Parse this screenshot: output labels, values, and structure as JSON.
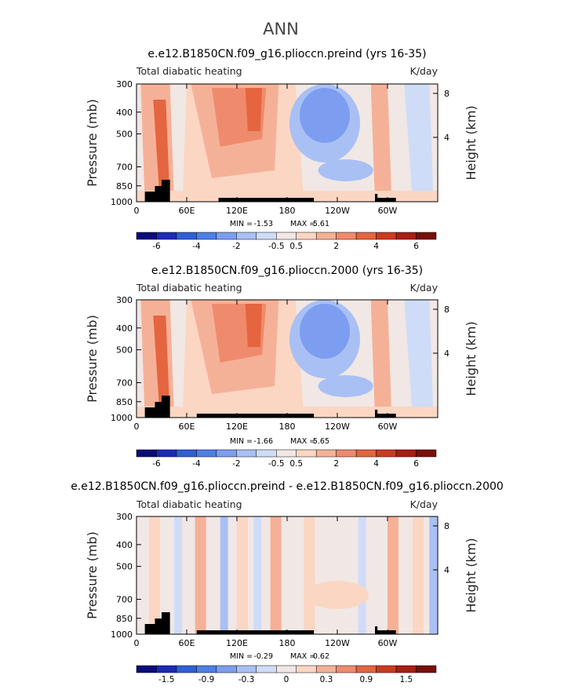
{
  "figure_title": "ANN",
  "chart_data": [
    {
      "type": "heatmap",
      "title": "e.e12.B1850CN.f09_g16.plioccn.preind (yrs 16-35)",
      "left_label": "Total diabatic heating",
      "units": "K/day",
      "ylabel": "Pressure (mb)",
      "right_label": "Height (km)",
      "yticks": [
        "300",
        "400",
        "500",
        "700",
        "850",
        "1000"
      ],
      "xticks": [
        "0",
        "60E",
        "120E",
        "180",
        "120W",
        "60W"
      ],
      "height_ticks": [
        "8",
        "4"
      ],
      "min_label": "MIN =",
      "min": "-1.53",
      "max_label": "MAX =",
      "max": "5.61",
      "colorbar_labels": [
        "-6",
        "-4",
        "-2",
        "-0.5",
        "0.5",
        "2",
        "4",
        "6"
      ],
      "colorbar_colors": [
        "#0c0c7a",
        "#1c2ab8",
        "#2f5fd6",
        "#4d7fe6",
        "#7d9ef0",
        "#a9c0f5",
        "#cfdcf8",
        "#f1e7e4",
        "#fbd6c3",
        "#f5b197",
        "#ef8b6c",
        "#e4653f",
        "#cc3a20",
        "#a81e12",
        "#7a0f0a"
      ],
      "surface": "oceans"
    },
    {
      "type": "heatmap",
      "title": "e.e12.B1850CN.f09_g16.plioccn.2000 (yrs 16-35)",
      "left_label": "Total diabatic heating",
      "units": "K/day",
      "ylabel": "Pressure (mb)",
      "right_label": "Height (km)",
      "yticks": [
        "300",
        "400",
        "500",
        "700",
        "850",
        "1000"
      ],
      "xticks": [
        "0",
        "60E",
        "120E",
        "180",
        "120W",
        "60W"
      ],
      "height_ticks": [
        "8",
        "4"
      ],
      "min_label": "MIN =",
      "min": "-1.66",
      "max_label": "MAX =",
      "max": "5.65",
      "colorbar_labels": [
        "-6",
        "-4",
        "-2",
        "-0.5",
        "0.5",
        "2",
        "4",
        "6"
      ],
      "colorbar_colors": [
        "#0c0c7a",
        "#1c2ab8",
        "#2f5fd6",
        "#4d7fe6",
        "#7d9ef0",
        "#a9c0f5",
        "#cfdcf8",
        "#f1e7e4",
        "#fbd6c3",
        "#f5b197",
        "#ef8b6c",
        "#e4653f",
        "#cc3a20",
        "#a81e12",
        "#7a0f0a"
      ]
    },
    {
      "type": "heatmap",
      "title": "e.e12.B1850CN.f09_g16.plioccn.preind - e.e12.B1850CN.f09_g16.plioccn.2000",
      "left_label": "Total diabatic heating",
      "units": "K/day",
      "ylabel": "Pressure (mb)",
      "right_label": "Height (km)",
      "yticks": [
        "300",
        "400",
        "500",
        "700",
        "850",
        "1000"
      ],
      "xticks": [
        "0",
        "60E",
        "120E",
        "180",
        "120W",
        "60W"
      ],
      "height_ticks": [
        "8",
        "4"
      ],
      "min_label": "MIN =",
      "min": "-0.29",
      "max_label": "MAX =",
      "max": "0.62",
      "colorbar_labels": [
        "-1.5",
        "-0.9",
        "-0.3",
        "0",
        "0.3",
        "0.9",
        "1.5"
      ],
      "colorbar_colors": [
        "#0c0c7a",
        "#1c2ab8",
        "#2f5fd6",
        "#4d7fe6",
        "#7d9ef0",
        "#a9c0f5",
        "#cfdcf8",
        "#f1e7e4",
        "#fbd6c3",
        "#f5b197",
        "#ef8b6c",
        "#e4653f",
        "#cc3a20",
        "#a81e12",
        "#7a0f0a"
      ]
    }
  ]
}
